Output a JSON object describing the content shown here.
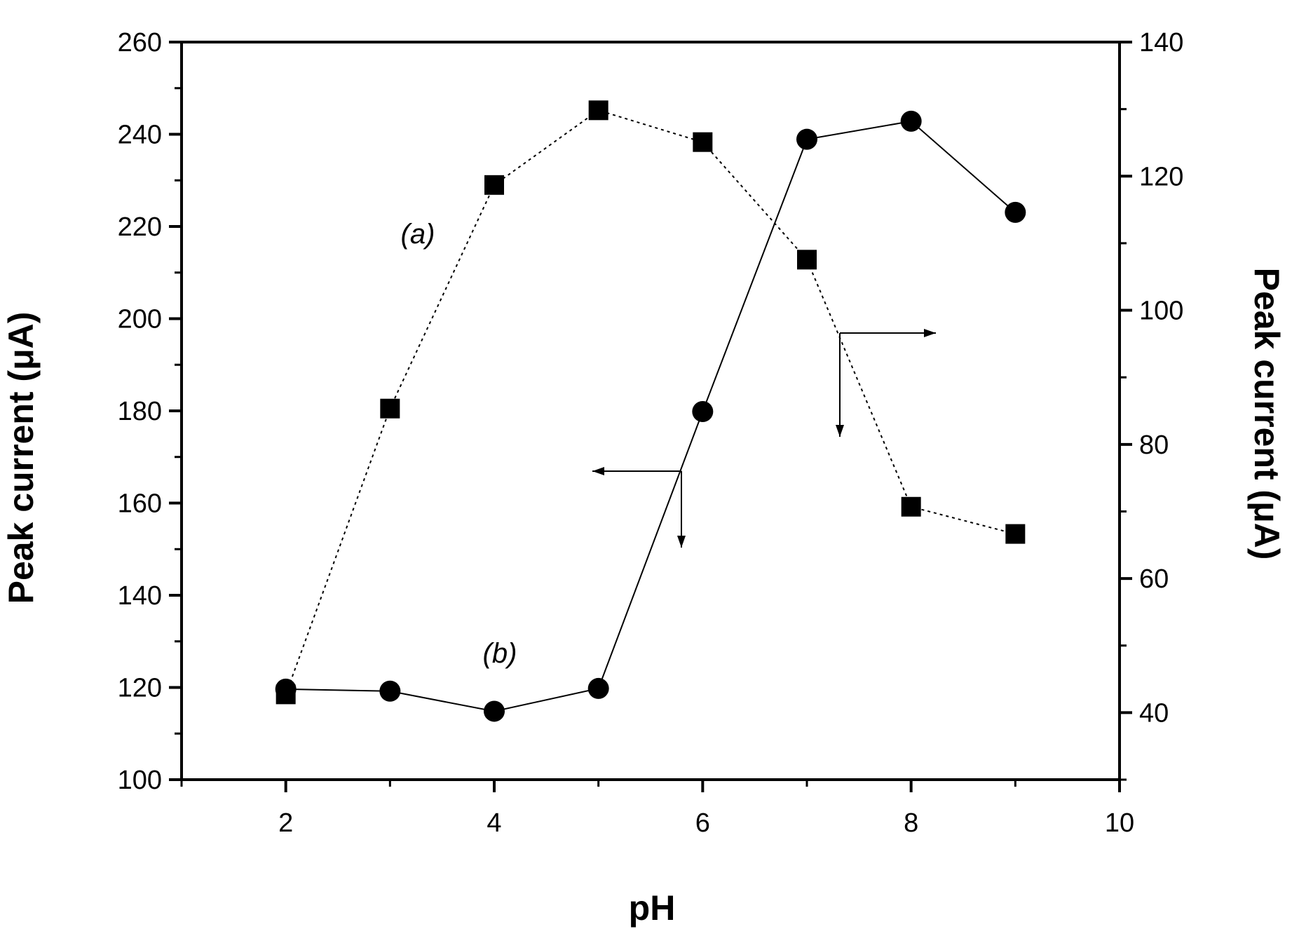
{
  "chart_data": {
    "type": "line",
    "xlabel": "pH",
    "ylabel_left": "Peak current (μA)",
    "ylabel_right": "Peak current (μA)",
    "xlim": [
      1,
      10
    ],
    "ylim_left": [
      100,
      260
    ],
    "ylim_right": [
      30,
      140
    ],
    "x_ticks": [
      2,
      4,
      6,
      8,
      10
    ],
    "y_left_ticks": [
      100,
      120,
      140,
      160,
      180,
      200,
      220,
      240,
      260
    ],
    "y_right_ticks": [
      40,
      60,
      80,
      100,
      120,
      140
    ],
    "series": [
      {
        "label": "(a)",
        "axis": "left",
        "marker": "square",
        "line": "dotted",
        "x": [
          2,
          3,
          4,
          5,
          6,
          7,
          8,
          9
        ],
        "y": [
          118.5,
          180.5,
          229,
          245.2,
          238.3,
          212.8,
          159.2,
          153.3
        ]
      },
      {
        "label": "(b)",
        "axis": "right",
        "marker": "circle",
        "line": "solid",
        "x": [
          2,
          3,
          4,
          5,
          6,
          7,
          8,
          9
        ],
        "y": [
          43.5,
          43.2,
          40.2,
          43.6,
          84.9,
          125.5,
          128.2,
          114.6
        ]
      }
    ],
    "grid": false
  }
}
